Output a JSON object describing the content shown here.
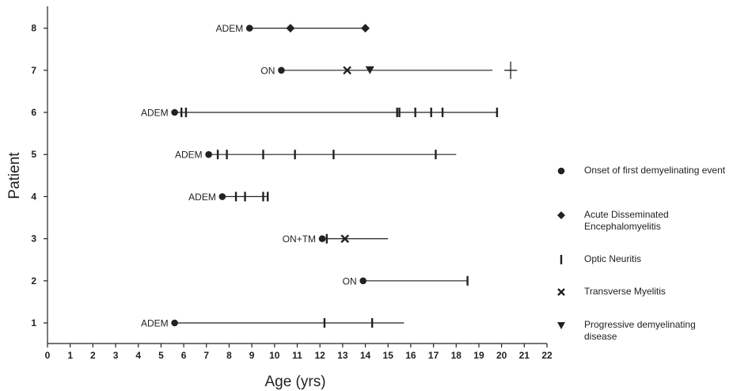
{
  "chart_data": {
    "type": "timeline",
    "xlabel": "Age (yrs)",
    "ylabel": "Patient",
    "xlim": [
      0,
      22
    ],
    "ylim": [
      0,
      8
    ],
    "x_ticks": [
      0,
      1,
      2,
      3,
      4,
      5,
      6,
      7,
      8,
      9,
      10,
      11,
      12,
      13,
      14,
      15,
      16,
      17,
      18,
      19,
      20,
      21,
      22
    ],
    "y_ticks": [
      1,
      2,
      3,
      4,
      5,
      6,
      7,
      8
    ],
    "grid": false,
    "legend_position": "right",
    "patients": [
      {
        "patient": 1,
        "onset_label": "ADEM",
        "line": [
          5.6,
          15.7
        ],
        "events": [
          {
            "type": "onset",
            "age": 5.6
          },
          {
            "type": "optic_neuritis",
            "age": 12.2
          },
          {
            "type": "optic_neuritis",
            "age": 14.3
          }
        ]
      },
      {
        "patient": 2,
        "onset_label": "ON",
        "line": [
          13.9,
          18.5
        ],
        "events": [
          {
            "type": "onset",
            "age": 13.9
          },
          {
            "type": "optic_neuritis",
            "age": 18.5
          }
        ]
      },
      {
        "patient": 3,
        "onset_label": "ON+TM",
        "line": [
          12.1,
          15.0
        ],
        "events": [
          {
            "type": "onset",
            "age": 12.1
          },
          {
            "type": "optic_neuritis",
            "age": 12.3
          },
          {
            "type": "transverse_myelitis",
            "age": 13.1
          }
        ]
      },
      {
        "patient": 4,
        "onset_label": "ADEM",
        "line": [
          7.7,
          9.7
        ],
        "events": [
          {
            "type": "onset",
            "age": 7.7
          },
          {
            "type": "optic_neuritis",
            "age": 8.3
          },
          {
            "type": "optic_neuritis",
            "age": 8.7
          },
          {
            "type": "optic_neuritis",
            "age": 9.5
          },
          {
            "type": "optic_neuritis",
            "age": 9.7
          }
        ]
      },
      {
        "patient": 5,
        "onset_label": "ADEM",
        "line": [
          7.1,
          18.0
        ],
        "events": [
          {
            "type": "onset",
            "age": 7.1
          },
          {
            "type": "optic_neuritis",
            "age": 7.5
          },
          {
            "type": "optic_neuritis",
            "age": 7.9
          },
          {
            "type": "optic_neuritis",
            "age": 9.5
          },
          {
            "type": "optic_neuritis",
            "age": 10.9
          },
          {
            "type": "optic_neuritis",
            "age": 12.6
          },
          {
            "type": "optic_neuritis",
            "age": 17.1
          }
        ]
      },
      {
        "patient": 6,
        "onset_label": "ADEM",
        "line": [
          5.6,
          19.8
        ],
        "events": [
          {
            "type": "onset",
            "age": 5.6
          },
          {
            "type": "optic_neuritis",
            "age": 5.9
          },
          {
            "type": "optic_neuritis",
            "age": 6.1
          },
          {
            "type": "optic_neuritis",
            "age": 15.4
          },
          {
            "type": "optic_neuritis",
            "age": 15.5
          },
          {
            "type": "optic_neuritis",
            "age": 16.2
          },
          {
            "type": "optic_neuritis",
            "age": 16.9
          },
          {
            "type": "optic_neuritis",
            "age": 17.4
          },
          {
            "type": "optic_neuritis",
            "age": 19.8
          }
        ]
      },
      {
        "patient": 7,
        "onset_label": "ON",
        "line": [
          10.3,
          19.6
        ],
        "events": [
          {
            "type": "onset",
            "age": 10.3
          },
          {
            "type": "transverse_myelitis",
            "age": 13.2
          },
          {
            "type": "progressive",
            "age": 14.2
          },
          {
            "type": "death",
            "age": 20.4
          }
        ]
      },
      {
        "patient": 8,
        "onset_label": "ADEM",
        "line": [
          8.9,
          14.0
        ],
        "events": [
          {
            "type": "onset",
            "age": 8.9
          },
          {
            "type": "adem",
            "age": 10.7
          },
          {
            "type": "adem",
            "age": 14.0
          }
        ]
      }
    ],
    "legend": [
      {
        "symbol": "onset",
        "label": "Onset of first demyelinating event"
      },
      {
        "symbol": "adem",
        "label": "Acute Disseminated Encephalomyelitis"
      },
      {
        "symbol": "optic_neuritis",
        "label": "Optic Neuritis"
      },
      {
        "symbol": "transverse_myelitis",
        "label": "Transverse Myelitis"
      },
      {
        "symbol": "progressive",
        "label": "Progressive demyelinating disease"
      }
    ]
  }
}
